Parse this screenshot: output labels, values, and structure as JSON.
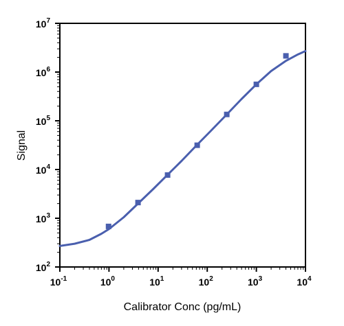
{
  "chart_data": {
    "type": "scatter",
    "xlabel": "Calibrator Conc (pg/mL)",
    "ylabel": "Signal",
    "x_scale": "log",
    "y_scale": "log",
    "xlim": [
      0.1,
      10000
    ],
    "ylim": [
      100,
      10000000
    ],
    "x_ticks": [
      {
        "base": "10",
        "exp": "-1",
        "value": 0.1
      },
      {
        "base": "10",
        "exp": "0",
        "value": 1
      },
      {
        "base": "10",
        "exp": "1",
        "value": 10
      },
      {
        "base": "10",
        "exp": "2",
        "value": 100
      },
      {
        "base": "10",
        "exp": "3",
        "value": 1000
      },
      {
        "base": "10",
        "exp": "4",
        "value": 10000
      }
    ],
    "y_ticks": [
      {
        "base": "10",
        "exp": "2",
        "value": 100
      },
      {
        "base": "10",
        "exp": "3",
        "value": 1000
      },
      {
        "base": "10",
        "exp": "4",
        "value": 10000
      },
      {
        "base": "10",
        "exp": "5",
        "value": 100000
      },
      {
        "base": "10",
        "exp": "6",
        "value": 1000000
      },
      {
        "base": "10",
        "exp": "7",
        "value": 10000000
      }
    ],
    "points": [
      {
        "x": 0.98,
        "y": 680
      },
      {
        "x": 3.9,
        "y": 2100
      },
      {
        "x": 15.6,
        "y": 7700
      },
      {
        "x": 62.5,
        "y": 31500
      },
      {
        "x": 250,
        "y": 135000
      },
      {
        "x": 1000,
        "y": 560000
      },
      {
        "x": 4000,
        "y": 2150000
      }
    ],
    "fit_curve": [
      {
        "x": 0.1,
        "y": 270
      },
      {
        "x": 0.2,
        "y": 300
      },
      {
        "x": 0.4,
        "y": 360
      },
      {
        "x": 0.7,
        "y": 480
      },
      {
        "x": 1,
        "y": 600
      },
      {
        "x": 2,
        "y": 1050
      },
      {
        "x": 4,
        "y": 2050
      },
      {
        "x": 8,
        "y": 4000
      },
      {
        "x": 15,
        "y": 7500
      },
      {
        "x": 30,
        "y": 15000
      },
      {
        "x": 60,
        "y": 31000
      },
      {
        "x": 120,
        "y": 63000
      },
      {
        "x": 250,
        "y": 135000
      },
      {
        "x": 500,
        "y": 280000
      },
      {
        "x": 1000,
        "y": 560000
      },
      {
        "x": 2000,
        "y": 1050000
      },
      {
        "x": 4000,
        "y": 1700000
      },
      {
        "x": 7000,
        "y": 2300000
      },
      {
        "x": 10000,
        "y": 2700000
      }
    ],
    "grid": false,
    "legend": "none",
    "series_color": "#4a5fae"
  }
}
